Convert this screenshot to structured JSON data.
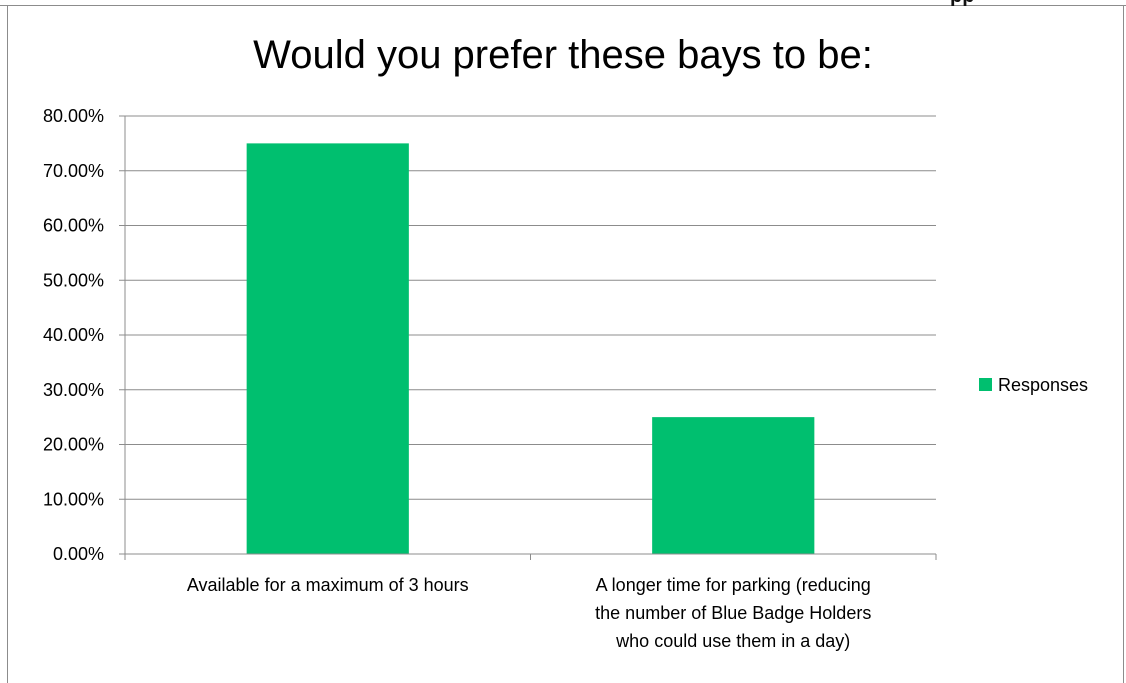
{
  "top_edge_text": "pp",
  "chart_data": {
    "type": "bar",
    "title": "Would you prefer these bays to be:",
    "xlabel": "",
    "ylabel": "",
    "categories": [
      [
        "Available for a maximum of 3 hours"
      ],
      [
        "A  longer time for parking (reducing",
        "the number of Blue Badge Holders",
        "who could use them in a day)"
      ]
    ],
    "series": [
      {
        "name": "Responses",
        "values": [
          0.75,
          0.25
        ],
        "color": "#00BF6F"
      }
    ],
    "ylim": [
      0,
      0.8
    ],
    "yticks": [
      "0.00%",
      "10.00%",
      "20.00%",
      "30.00%",
      "40.00%",
      "50.00%",
      "60.00%",
      "70.00%",
      "80.00%"
    ],
    "grid": true,
    "gridline_color": "#8c8c8c",
    "legend_position": "right"
  }
}
